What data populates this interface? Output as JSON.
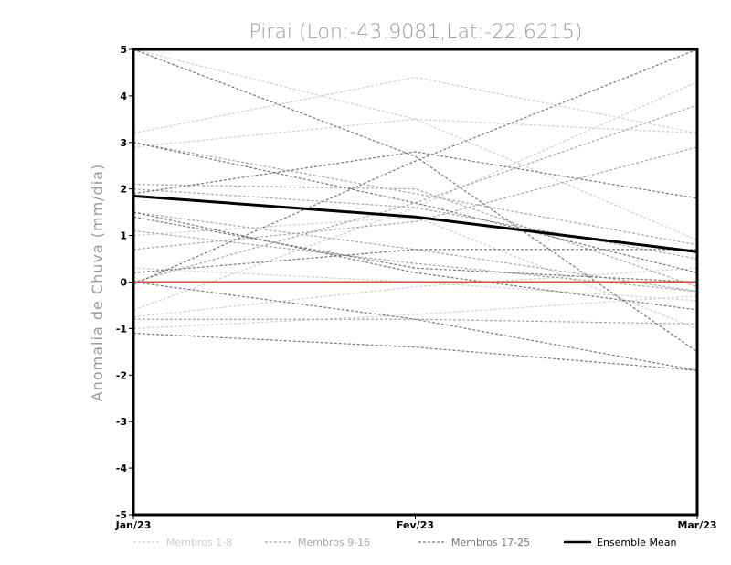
{
  "chart_data": {
    "type": "line",
    "title": "Pirai (Lon:-43.9081,Lat:-22.6215)",
    "xlabel": "",
    "ylabel": "Anomalia de Chuva (mm/dia)",
    "categories": [
      "Jan/23",
      "Fev/23",
      "Mar/23"
    ],
    "ylim": [
      -5,
      5
    ],
    "yticks": [
      "-5",
      "-4",
      "-3",
      "-2",
      "-1",
      "0",
      "1",
      "2",
      "3",
      "4",
      "5"
    ],
    "groups": [
      {
        "name": "Membros 1-8",
        "color": "#cfcfcf"
      },
      {
        "name": "Membros 9-16",
        "color": "#a8a8a8"
      },
      {
        "name": "Membros 17-25",
        "color": "#787878"
      }
    ],
    "series": [
      {
        "group": 0,
        "values": [
          5.0,
          3.5,
          0.9
        ]
      },
      {
        "group": 0,
        "values": [
          3.2,
          4.4,
          3.2
        ]
      },
      {
        "group": 0,
        "values": [
          2.9,
          3.5,
          3.2
        ]
      },
      {
        "group": 0,
        "values": [
          1.0,
          1.4,
          -1.0
        ]
      },
      {
        "group": 0,
        "values": [
          -0.6,
          1.6,
          4.3
        ]
      },
      {
        "group": 0,
        "values": [
          0.3,
          0.0,
          -0.4
        ]
      },
      {
        "group": 0,
        "values": [
          -1.0,
          -0.7,
          -0.3
        ]
      },
      {
        "group": 0,
        "values": [
          -0.75,
          -0.1,
          0.3
        ]
      },
      {
        "group": 1,
        "values": [
          2.1,
          2.0,
          -0.1
        ]
      },
      {
        "group": 1,
        "values": [
          1.5,
          0.7,
          -0.2
        ]
      },
      {
        "group": 1,
        "values": [
          0.7,
          1.3,
          2.9
        ]
      },
      {
        "group": 1,
        "values": [
          0.0,
          1.7,
          3.8
        ]
      },
      {
        "group": 1,
        "values": [
          -0.8,
          -0.8,
          -0.9
        ]
      },
      {
        "group": 1,
        "values": [
          2.0,
          1.6,
          0.5
        ]
      },
      {
        "group": 1,
        "values": [
          3.0,
          1.9,
          0.8
        ]
      },
      {
        "group": 1,
        "values": [
          1.1,
          0.4,
          -0.2
        ]
      },
      {
        "group": 2,
        "values": [
          3.0,
          1.7,
          0.2
        ]
      },
      {
        "group": 2,
        "values": [
          1.9,
          2.8,
          1.8
        ]
      },
      {
        "group": 2,
        "values": [
          0.0,
          -0.8,
          -1.9
        ]
      },
      {
        "group": 2,
        "values": [
          -1.1,
          -1.4,
          -1.9
        ]
      },
      {
        "group": 2,
        "values": [
          1.5,
          0.2,
          -0.6
        ]
      },
      {
        "group": 2,
        "values": [
          0.2,
          0.7,
          0.7
        ]
      },
      {
        "group": 2,
        "values": [
          1.4,
          0.3,
          0.0
        ]
      },
      {
        "group": 2,
        "values": [
          -0.05,
          2.6,
          5.0
        ]
      },
      {
        "group": 2,
        "values": [
          5.0,
          2.7,
          -1.5
        ]
      }
    ],
    "ensemble_mean": {
      "name": "Ensemble Mean",
      "values": [
        1.85,
        1.4,
        0.65
      ],
      "color": "#000000"
    },
    "zero_line_color": "#f04040",
    "legend": [
      "Membros 1-8",
      "Membros 9-16",
      "Membros 17-25",
      "Ensemble Mean"
    ],
    "legend_position": "bottom"
  }
}
